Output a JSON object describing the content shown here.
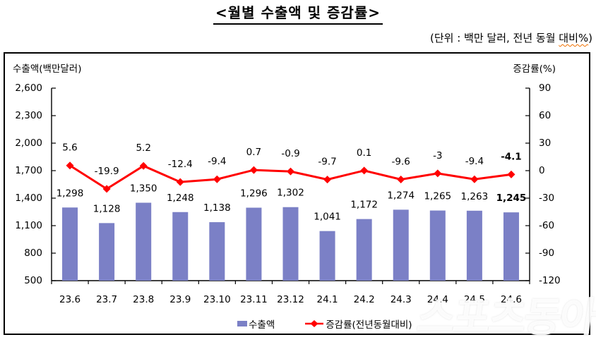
{
  "page": {
    "title": "<월별 수출액 및 증감률>",
    "unit_note_prefix": "(단위 : 백만 달러, 전년 동월 ",
    "unit_note_squiggle": "대비%",
    "unit_note_suffix": ")"
  },
  "chart_data": {
    "type": "bar",
    "combo": "bar+line",
    "title": "월별 수출액 및 증감률",
    "categories": [
      "23.6",
      "23.7",
      "23.8",
      "23.9",
      "23.10",
      "23.11",
      "23.12",
      "24.1",
      "24.2",
      "24.3",
      "24.4",
      "24.5",
      "24.6"
    ],
    "series": [
      {
        "name": "수출액",
        "type": "bar",
        "axis": "left",
        "color": "#7B80C6",
        "values": [
          1298,
          1128,
          1350,
          1248,
          1138,
          1296,
          1302,
          1041,
          1172,
          1274,
          1265,
          1263,
          1245
        ]
      },
      {
        "name": "증감률(전년동월대비)",
        "type": "line",
        "axis": "right",
        "color": "#FF0000",
        "values": [
          5.6,
          -19.9,
          5.2,
          -12.4,
          -9.4,
          0.7,
          -0.9,
          -9.7,
          0.1,
          -9.6,
          -3,
          -9.4,
          -4.1
        ]
      }
    ],
    "left_axis": {
      "title": "수출액(백만달러)",
      "min": 500,
      "max": 2600,
      "ticks": [
        2600,
        2300,
        2000,
        1700,
        1400,
        1100,
        800,
        500
      ]
    },
    "right_axis": {
      "title": "증감률(%)",
      "min": -120,
      "max": 90,
      "ticks": [
        90,
        60,
        30,
        0,
        -30,
        -60,
        -90,
        -120
      ]
    },
    "legend_position": "bottom",
    "grid": "off",
    "text_color": "#000000"
  },
  "watermark": "스포츠동아"
}
